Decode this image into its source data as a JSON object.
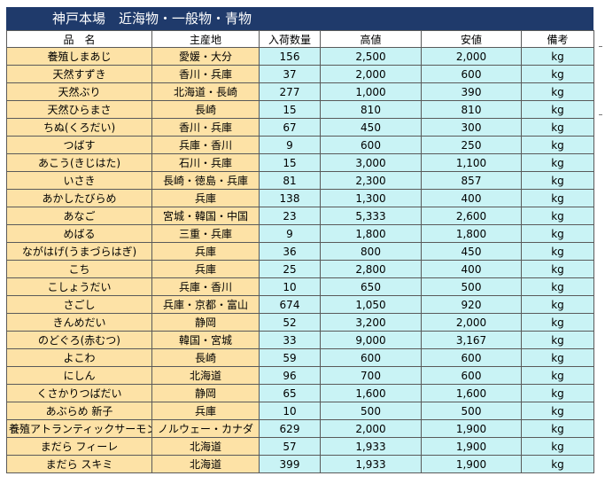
{
  "title": "神戸本場　近海物・一般物・青物",
  "columns": [
    "品　名",
    "主産地",
    "入荷数量",
    "高値",
    "安値",
    "備考"
  ],
  "rows": [
    {
      "name": "養殖しまあじ",
      "origin": "愛媛・大分",
      "qty": "156",
      "high": "2,500",
      "low": "2,000",
      "unit": "kg"
    },
    {
      "name": "天然すずき",
      "origin": "香川・兵庫",
      "qty": "37",
      "high": "2,000",
      "low": "600",
      "unit": "kg"
    },
    {
      "name": "天然ぶり",
      "origin": "北海道・長崎",
      "qty": "277",
      "high": "1,000",
      "low": "390",
      "unit": "kg"
    },
    {
      "name": "天然ひらまさ",
      "origin": "長崎",
      "qty": "15",
      "high": "810",
      "low": "810",
      "unit": "kg"
    },
    {
      "name": "ちぬ(くろだい)",
      "origin": "香川・兵庫",
      "qty": "67",
      "high": "450",
      "low": "300",
      "unit": "kg"
    },
    {
      "name": "つばす",
      "origin": "兵庫・香川",
      "qty": "9",
      "high": "600",
      "low": "250",
      "unit": "kg"
    },
    {
      "name": "あこう(きじはた)",
      "origin": "石川・兵庫",
      "qty": "15",
      "high": "3,000",
      "low": "1,100",
      "unit": "kg"
    },
    {
      "name": "いさき",
      "origin": "長崎・徳島・兵庫",
      "qty": "81",
      "high": "2,300",
      "low": "857",
      "unit": "kg"
    },
    {
      "name": "あかしたびらめ",
      "origin": "兵庫",
      "qty": "138",
      "high": "1,300",
      "low": "400",
      "unit": "kg"
    },
    {
      "name": "あなご",
      "origin": "宮城・韓国・中国",
      "qty": "23",
      "high": "5,333",
      "low": "2,600",
      "unit": "kg"
    },
    {
      "name": "めばる",
      "origin": "三重・兵庫",
      "qty": "9",
      "high": "1,800",
      "low": "1,800",
      "unit": "kg"
    },
    {
      "name": "ながはげ(うまづらはぎ)",
      "origin": "兵庫",
      "qty": "36",
      "high": "800",
      "low": "450",
      "unit": "kg"
    },
    {
      "name": "こち",
      "origin": "兵庫",
      "qty": "25",
      "high": "2,800",
      "low": "400",
      "unit": "kg"
    },
    {
      "name": "こしょうだい",
      "origin": "兵庫・香川",
      "qty": "10",
      "high": "650",
      "low": "500",
      "unit": "kg"
    },
    {
      "name": "さごし",
      "origin": "兵庫・京都・富山",
      "qty": "674",
      "high": "1,050",
      "low": "920",
      "unit": "kg"
    },
    {
      "name": "きんめだい",
      "origin": "静岡",
      "qty": "52",
      "high": "3,200",
      "low": "2,000",
      "unit": "kg"
    },
    {
      "name": "のどぐろ(赤むつ)",
      "origin": "韓国・宮城",
      "qty": "33",
      "high": "9,000",
      "low": "3,167",
      "unit": "kg"
    },
    {
      "name": "よこわ",
      "origin": "長崎",
      "qty": "59",
      "high": "600",
      "low": "600",
      "unit": "kg"
    },
    {
      "name": "にしん",
      "origin": "北海道",
      "qty": "96",
      "high": "700",
      "low": "600",
      "unit": "kg"
    },
    {
      "name": "くさかりつばだい",
      "origin": "静岡",
      "qty": "65",
      "high": "1,600",
      "low": "1,600",
      "unit": "kg"
    },
    {
      "name": "あぶらめ 新子",
      "origin": "兵庫",
      "qty": "10",
      "high": "500",
      "low": "500",
      "unit": "kg"
    },
    {
      "name": "養殖アトランティックサーモン",
      "origin": "ノルウェー・カナダ",
      "qty": "629",
      "high": "2,000",
      "low": "1,900",
      "unit": "kg"
    },
    {
      "name": "まだら フィーレ",
      "origin": "北海道",
      "qty": "57",
      "high": "1,933",
      "low": "1,900",
      "unit": "kg"
    },
    {
      "name": "まだら スキミ",
      "origin": "北海道",
      "qty": "399",
      "high": "1,933",
      "low": "1,900",
      "unit": "kg"
    }
  ]
}
